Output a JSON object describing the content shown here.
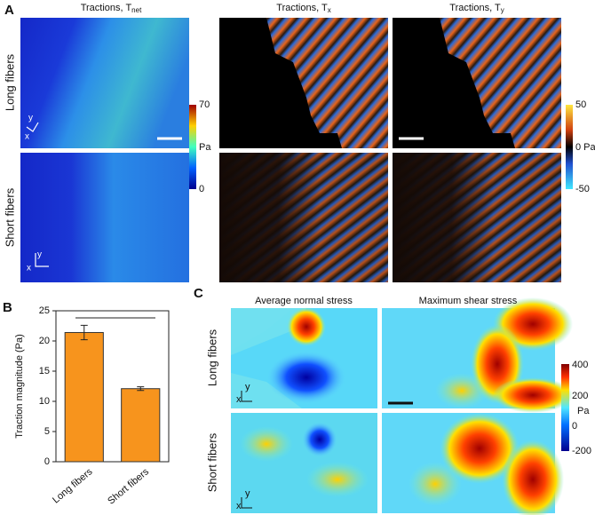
{
  "panel_a": {
    "label": "A",
    "titles": [
      {
        "text": "Tractions, T",
        "sub": "net"
      },
      {
        "text": "Tractions, T",
        "sub": "x"
      },
      {
        "text": "Tractions, T",
        "sub": "y"
      }
    ],
    "rows": [
      "Long fibers",
      "Short fibers"
    ],
    "axes": [
      "x",
      "y"
    ],
    "colorbar_net": [
      "70",
      "Pa",
      "0"
    ],
    "colorbar_xy": [
      "50",
      "0 Pa",
      "-50"
    ]
  },
  "panel_b": {
    "label": "B"
  },
  "chart_data": {
    "type": "bar",
    "y_label": "Traction magnitude (Pa)",
    "categories": [
      "Long fibers",
      "Short fibers"
    ],
    "values": [
      21.4,
      12.1
    ],
    "errors": [
      1.2,
      0.3
    ],
    "color": "#f7941d",
    "ylim": [
      0,
      25
    ],
    "yticks": [
      0,
      5,
      10,
      15,
      20,
      25
    ]
  },
  "panel_c": {
    "label": "C",
    "titles": [
      "Average normal stress",
      "Maximum shear stress"
    ],
    "rows": [
      "Long fibers",
      "Short fibers"
    ],
    "colorbar": [
      "400",
      "200",
      "Pa",
      "0",
      "-200"
    ]
  }
}
